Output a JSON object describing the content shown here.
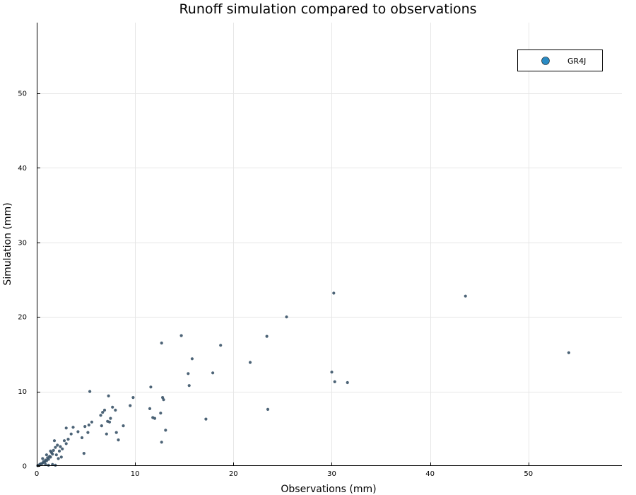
{
  "chart_data": {
    "type": "scatter",
    "title": "Runoff simulation compared to observations",
    "xlabel": "Observations (mm)",
    "ylabel": "Simulation (mm)",
    "xlim": [
      0,
      59.5
    ],
    "ylim": [
      0,
      59.5
    ],
    "xticks": [
      0,
      10,
      20,
      30,
      40,
      50
    ],
    "yticks": [
      0,
      10,
      20,
      30,
      40,
      50
    ],
    "grid": true,
    "legend_position": "top-right",
    "series": [
      {
        "name": "GR4J",
        "color": "#2a8bc4",
        "marker_color": "#3a5368",
        "points": [
          [
            54.1,
            15.2
          ],
          [
            43.6,
            22.8
          ],
          [
            30.2,
            23.2
          ],
          [
            25.4,
            20.0
          ],
          [
            23.4,
            17.4
          ],
          [
            23.5,
            7.6
          ],
          [
            31.6,
            11.2
          ],
          [
            30.3,
            11.3
          ],
          [
            30.0,
            12.6
          ],
          [
            21.7,
            13.9
          ],
          [
            18.7,
            16.2
          ],
          [
            17.9,
            12.5
          ],
          [
            17.2,
            6.3
          ],
          [
            15.8,
            14.4
          ],
          [
            15.5,
            10.8
          ],
          [
            15.4,
            12.4
          ],
          [
            14.7,
            17.5
          ],
          [
            12.7,
            16.5
          ],
          [
            12.8,
            9.2
          ],
          [
            12.9,
            8.9
          ],
          [
            12.6,
            7.1
          ],
          [
            12.7,
            3.2
          ],
          [
            13.1,
            4.8
          ],
          [
            11.6,
            10.6
          ],
          [
            11.5,
            7.7
          ],
          [
            11.8,
            6.5
          ],
          [
            12.0,
            6.4
          ],
          [
            9.8,
            9.2
          ],
          [
            9.5,
            8.1
          ],
          [
            8.8,
            5.4
          ],
          [
            8.0,
            7.5
          ],
          [
            8.1,
            4.5
          ],
          [
            8.3,
            3.5
          ],
          [
            7.7,
            7.9
          ],
          [
            7.5,
            6.4
          ],
          [
            7.4,
            5.9
          ],
          [
            7.3,
            9.4
          ],
          [
            7.2,
            6.0
          ],
          [
            7.1,
            4.3
          ],
          [
            6.9,
            7.5
          ],
          [
            6.7,
            7.2
          ],
          [
            6.5,
            6.8
          ],
          [
            6.6,
            5.4
          ],
          [
            5.4,
            10.0
          ],
          [
            5.6,
            5.9
          ],
          [
            5.3,
            5.5
          ],
          [
            4.9,
            5.3
          ],
          [
            5.2,
            4.5
          ],
          [
            4.6,
            3.8
          ],
          [
            4.8,
            1.7
          ],
          [
            4.2,
            4.6
          ],
          [
            3.7,
            5.2
          ],
          [
            3.5,
            4.3
          ],
          [
            3.2,
            3.6
          ],
          [
            3.0,
            5.1
          ],
          [
            3.0,
            3.0
          ],
          [
            2.8,
            3.4
          ],
          [
            2.6,
            2.3
          ],
          [
            2.4,
            2.6
          ],
          [
            2.5,
            1.2
          ],
          [
            2.2,
            1.0
          ],
          [
            2.1,
            2.8
          ],
          [
            1.9,
            2.5
          ],
          [
            1.8,
            3.4
          ],
          [
            1.7,
            2.1
          ],
          [
            1.6,
            1.6
          ],
          [
            1.5,
            1.8
          ],
          [
            1.4,
            1.2
          ],
          [
            1.3,
            1.3
          ],
          [
            1.2,
            0.9
          ],
          [
            1.1,
            1.1
          ],
          [
            1.0,
            0.7
          ],
          [
            0.9,
            0.8
          ],
          [
            0.8,
            0.5
          ],
          [
            0.7,
            0.6
          ],
          [
            0.6,
            0.4
          ],
          [
            0.5,
            0.3
          ],
          [
            0.4,
            0.3
          ],
          [
            0.3,
            0.2
          ],
          [
            0.2,
            0.1
          ],
          [
            0.1,
            0.05
          ],
          [
            1.6,
            0.2
          ],
          [
            1.9,
            0.1
          ],
          [
            1.2,
            0.1
          ],
          [
            0.9,
            0.2
          ],
          [
            2.0,
            1.5
          ],
          [
            2.3,
            2.0
          ],
          [
            1.4,
            2.0
          ],
          [
            1.0,
            1.5
          ],
          [
            0.6,
            1.0
          ]
        ]
      }
    ]
  }
}
